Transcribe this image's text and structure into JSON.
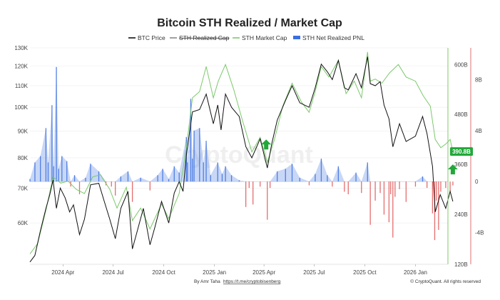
{
  "chart_data": {
    "type": "line",
    "title": "Bitcoin STH Realized / Market Cap",
    "legend": [
      {
        "name": "BTC Price",
        "color": "#111111",
        "style": "line",
        "struck": false
      },
      {
        "name": "STH Realized Cap",
        "color": "#888888",
        "style": "line",
        "struck": true
      },
      {
        "name": "STH Market Cap",
        "color": "#7cc96b",
        "style": "line",
        "struck": false
      },
      {
        "name": "STH Net Realized PNL",
        "color": "#3b6fe0",
        "style": "area",
        "struck": false
      }
    ],
    "x_ticks": [
      "2024 Apr",
      "2024 Jul",
      "2024 Oct",
      "2025 Jan",
      "2025 Apr",
      "2025 Jul",
      "2025 Oct",
      "2026 Jan"
    ],
    "x_range": [
      "2024-02",
      "2026-03"
    ],
    "left_axis": {
      "label": "BTC Price",
      "scale": "log",
      "range": [
        50000,
        130000
      ],
      "ticks": [
        "130K",
        "120K",
        "110K",
        "100K",
        "90K",
        "80K",
        "70K",
        "60K"
      ]
    },
    "middle_axis": {
      "label": "STH Market Cap",
      "range": [
        120,
        640
      ],
      "ticks": [
        "600B",
        "480B",
        "360B",
        "240B",
        "120B"
      ]
    },
    "right_axis": {
      "label": "STH Net Realized PNL",
      "range": [
        -6.5,
        10.5
      ],
      "ticks": [
        "8B",
        "4B",
        "0",
        "-4B"
      ]
    },
    "current_value_label": "390.8B",
    "annotations": [
      {
        "type": "arrow-up",
        "color": "#22a83a",
        "date": "2025-04-05"
      },
      {
        "type": "arrow-up",
        "color": "#22a83a",
        "date": "2026-03-10"
      }
    ],
    "series": [
      {
        "name": "BTC Price",
        "axis": "left",
        "points": [
          [
            "2024-02-01",
            50500
          ],
          [
            "2024-02-10",
            52000
          ],
          [
            "2024-02-20",
            58000
          ],
          [
            "2024-03-01",
            64000
          ],
          [
            "2024-03-08",
            68000
          ],
          [
            "2024-03-14",
            72500
          ],
          [
            "2024-03-20",
            64000
          ],
          [
            "2024-03-27",
            70000
          ],
          [
            "2024-04-05",
            67000
          ],
          [
            "2024-04-13",
            63000
          ],
          [
            "2024-04-20",
            65000
          ],
          [
            "2024-05-01",
            57000
          ],
          [
            "2024-05-10",
            61000
          ],
          [
            "2024-05-21",
            71000
          ],
          [
            "2024-06-05",
            71500
          ],
          [
            "2024-06-15",
            66000
          ],
          [
            "2024-06-25",
            61000
          ],
          [
            "2024-07-05",
            56000
          ],
          [
            "2024-07-15",
            64000
          ],
          [
            "2024-07-28",
            69000
          ],
          [
            "2024-08-05",
            53500
          ],
          [
            "2024-08-15",
            58500
          ],
          [
            "2024-08-25",
            64000
          ],
          [
            "2024-09-06",
            54500
          ],
          [
            "2024-09-15",
            59000
          ],
          [
            "2024-09-27",
            66000
          ],
          [
            "2024-10-10",
            60000
          ],
          [
            "2024-10-20",
            68500
          ],
          [
            "2024-10-29",
            72000
          ],
          [
            "2024-11-05",
            69000
          ],
          [
            "2024-11-11",
            81000
          ],
          [
            "2024-11-22",
            98000
          ],
          [
            "2024-12-05",
            99000
          ],
          [
            "2024-12-17",
            106000
          ],
          [
            "2024-12-30",
            93000
          ],
          [
            "2025-01-07",
            101000
          ],
          [
            "2025-01-13",
            90500
          ],
          [
            "2025-01-21",
            106000
          ],
          [
            "2025-02-01",
            100000
          ],
          [
            "2025-02-15",
            96000
          ],
          [
            "2025-02-27",
            84000
          ],
          [
            "2025-03-10",
            80000
          ],
          [
            "2025-03-25",
            87000
          ],
          [
            "2025-04-07",
            76500
          ],
          [
            "2025-04-15",
            85000
          ],
          [
            "2025-04-25",
            94500
          ],
          [
            "2025-05-10",
            103000
          ],
          [
            "2025-05-22",
            110000
          ],
          [
            "2025-06-05",
            102000
          ],
          [
            "2025-06-22",
            100000
          ],
          [
            "2025-07-03",
            109000
          ],
          [
            "2025-07-14",
            121000
          ],
          [
            "2025-07-25",
            117000
          ],
          [
            "2025-08-03",
            113000
          ],
          [
            "2025-08-14",
            123000
          ],
          [
            "2025-08-25",
            109000
          ],
          [
            "2025-09-01",
            108000
          ],
          [
            "2025-09-15",
            116000
          ],
          [
            "2025-09-25",
            109000
          ],
          [
            "2025-10-06",
            125000
          ],
          [
            "2025-10-11",
            111000
          ],
          [
            "2025-10-20",
            110000
          ],
          [
            "2025-10-29",
            112000
          ],
          [
            "2025-11-05",
            101000
          ],
          [
            "2025-11-14",
            95000
          ],
          [
            "2025-11-21",
            84000
          ],
          [
            "2025-12-03",
            93000
          ],
          [
            "2025-12-15",
            86000
          ],
          [
            "2026-01-01",
            88000
          ],
          [
            "2026-01-14",
            96000
          ],
          [
            "2026-01-22",
            89000
          ],
          [
            "2026-02-01",
            77000
          ],
          [
            "2026-02-06",
            63000
          ],
          [
            "2026-02-15",
            68000
          ],
          [
            "2026-02-25",
            64000
          ],
          [
            "2026-03-05",
            69000
          ],
          [
            "2026-03-10",
            66000
          ]
        ]
      },
      {
        "name": "STH Market Cap",
        "axis": "middle",
        "points": [
          [
            "2024-02-01",
            145
          ],
          [
            "2024-02-15",
            170
          ],
          [
            "2024-03-01",
            250
          ],
          [
            "2024-03-14",
            330
          ],
          [
            "2024-03-28",
            315
          ],
          [
            "2024-04-10",
            320
          ],
          [
            "2024-04-25",
            300
          ],
          [
            "2024-05-10",
            290
          ],
          [
            "2024-05-25",
            330
          ],
          [
            "2024-06-08",
            335
          ],
          [
            "2024-06-25",
            300
          ],
          [
            "2024-07-08",
            255
          ],
          [
            "2024-07-25",
            305
          ],
          [
            "2024-08-05",
            225
          ],
          [
            "2024-08-20",
            255
          ],
          [
            "2024-09-06",
            205
          ],
          [
            "2024-09-27",
            265
          ],
          [
            "2024-10-10",
            230
          ],
          [
            "2024-10-29",
            290
          ],
          [
            "2024-11-11",
            400
          ],
          [
            "2024-11-22",
            520
          ],
          [
            "2024-12-05",
            535
          ],
          [
            "2024-12-17",
            595
          ],
          [
            "2024-12-30",
            520
          ],
          [
            "2025-01-08",
            560
          ],
          [
            "2025-01-21",
            600
          ],
          [
            "2025-02-05",
            540
          ],
          [
            "2025-02-20",
            470
          ],
          [
            "2025-03-10",
            390
          ],
          [
            "2025-03-25",
            425
          ],
          [
            "2025-04-07",
            365
          ],
          [
            "2025-04-20",
            420
          ],
          [
            "2025-05-05",
            500
          ],
          [
            "2025-05-22",
            555
          ],
          [
            "2025-06-08",
            510
          ],
          [
            "2025-06-22",
            485
          ],
          [
            "2025-07-03",
            535
          ],
          [
            "2025-07-14",
            595
          ],
          [
            "2025-07-28",
            570
          ],
          [
            "2025-08-14",
            610
          ],
          [
            "2025-08-28",
            530
          ],
          [
            "2025-09-12",
            560
          ],
          [
            "2025-09-25",
            520
          ],
          [
            "2025-10-06",
            630
          ],
          [
            "2025-10-11",
            560
          ],
          [
            "2025-10-20",
            565
          ],
          [
            "2025-11-01",
            555
          ],
          [
            "2025-11-15",
            580
          ],
          [
            "2025-12-01",
            600
          ],
          [
            "2025-12-15",
            570
          ],
          [
            "2026-01-01",
            560
          ],
          [
            "2026-01-15",
            525
          ],
          [
            "2026-01-28",
            500
          ],
          [
            "2026-02-06",
            420
          ],
          [
            "2026-02-16",
            400
          ],
          [
            "2026-02-26",
            410
          ],
          [
            "2026-03-05",
            420
          ],
          [
            "2026-03-10",
            391
          ]
        ]
      },
      {
        "name": "STH Net Realized PNL",
        "axis": "right",
        "points": [
          [
            "2024-02-01",
            0.2
          ],
          [
            "2024-02-10",
            1.5
          ],
          [
            "2024-02-20",
            2.0
          ],
          [
            "2024-03-01",
            4.2
          ],
          [
            "2024-03-05",
            1.5
          ],
          [
            "2024-03-12",
            6.0
          ],
          [
            "2024-03-15",
            1.2
          ],
          [
            "2024-03-20",
            9.0
          ],
          [
            "2024-03-24",
            1.0
          ],
          [
            "2024-03-30",
            2.0
          ],
          [
            "2024-04-08",
            1.6
          ],
          [
            "2024-04-15",
            -0.4
          ],
          [
            "2024-04-22",
            0.5
          ],
          [
            "2024-05-01",
            -1.0
          ],
          [
            "2024-05-12",
            0.3
          ],
          [
            "2024-05-21",
            1.4
          ],
          [
            "2024-06-05",
            0.8
          ],
          [
            "2024-06-18",
            -0.3
          ],
          [
            "2024-06-28",
            -0.4
          ],
          [
            "2024-07-05",
            -1.1
          ],
          [
            "2024-07-15",
            0.4
          ],
          [
            "2024-07-28",
            0.8
          ],
          [
            "2024-08-05",
            -1.6
          ],
          [
            "2024-08-20",
            0.3
          ],
          [
            "2024-09-06",
            -0.7
          ],
          [
            "2024-09-20",
            0.5
          ],
          [
            "2024-09-29",
            1.0
          ],
          [
            "2024-10-10",
            0.2
          ],
          [
            "2024-10-20",
            1.2
          ],
          [
            "2024-10-29",
            0.7
          ],
          [
            "2024-11-11",
            3.5
          ],
          [
            "2024-11-13",
            1.5
          ],
          [
            "2024-11-19",
            6.5
          ],
          [
            "2024-11-22",
            1.8
          ],
          [
            "2024-11-25",
            4.0
          ],
          [
            "2024-12-05",
            4.2
          ],
          [
            "2024-12-12",
            1.5
          ],
          [
            "2024-12-17",
            3.2
          ],
          [
            "2024-12-25",
            0.5
          ],
          [
            "2025-01-07",
            1.5
          ],
          [
            "2025-01-15",
            0.6
          ],
          [
            "2025-01-21",
            1.2
          ],
          [
            "2025-02-01",
            0.5
          ],
          [
            "2025-02-15",
            0.1
          ],
          [
            "2025-02-27",
            -2.0
          ],
          [
            "2025-03-05",
            -0.5
          ],
          [
            "2025-03-12",
            -1.8
          ],
          [
            "2025-03-25",
            -0.4
          ],
          [
            "2025-04-07",
            -3.0
          ],
          [
            "2025-04-12",
            -0.5
          ],
          [
            "2025-04-25",
            0.8
          ],
          [
            "2025-05-10",
            1.0
          ],
          [
            "2025-05-22",
            1.4
          ],
          [
            "2025-06-05",
            0.3
          ],
          [
            "2025-06-22",
            -0.3
          ],
          [
            "2025-07-03",
            0.6
          ],
          [
            "2025-07-14",
            1.8
          ],
          [
            "2025-07-25",
            0.5
          ],
          [
            "2025-08-03",
            -0.4
          ],
          [
            "2025-08-14",
            1.2
          ],
          [
            "2025-08-25",
            -0.8
          ],
          [
            "2025-09-01",
            -1.0
          ],
          [
            "2025-09-15",
            0.7
          ],
          [
            "2025-09-25",
            -0.9
          ],
          [
            "2025-10-06",
            1.5
          ],
          [
            "2025-10-11",
            -3.4
          ],
          [
            "2025-10-20",
            -1.5
          ],
          [
            "2025-10-29",
            -0.9
          ],
          [
            "2025-11-05",
            -2.6
          ],
          [
            "2025-11-14",
            -3.2
          ],
          [
            "2025-11-17",
            -1.0
          ],
          [
            "2025-11-21",
            -4.4
          ],
          [
            "2025-11-25",
            -1.2
          ],
          [
            "2025-12-03",
            -0.6
          ],
          [
            "2025-12-15",
            -1.6
          ],
          [
            "2026-01-01",
            -0.4
          ],
          [
            "2026-01-14",
            0.4
          ],
          [
            "2026-01-22",
            -0.5
          ],
          [
            "2026-02-01",
            -2.5
          ],
          [
            "2026-02-05",
            -4.6
          ],
          [
            "2026-02-08",
            -1.5
          ],
          [
            "2026-02-12",
            -3.8
          ],
          [
            "2026-02-16",
            -0.8
          ],
          [
            "2026-02-25",
            -0.5
          ],
          [
            "2026-03-05",
            -0.8
          ],
          [
            "2026-03-10",
            -0.3
          ]
        ]
      }
    ]
  },
  "watermark": "CryptoQuant",
  "footer": {
    "author": "By Amr Taha",
    "link": "https://t.me/cryptobisenberg",
    "copyright": "© CryptoQuant. All rights reserved"
  }
}
